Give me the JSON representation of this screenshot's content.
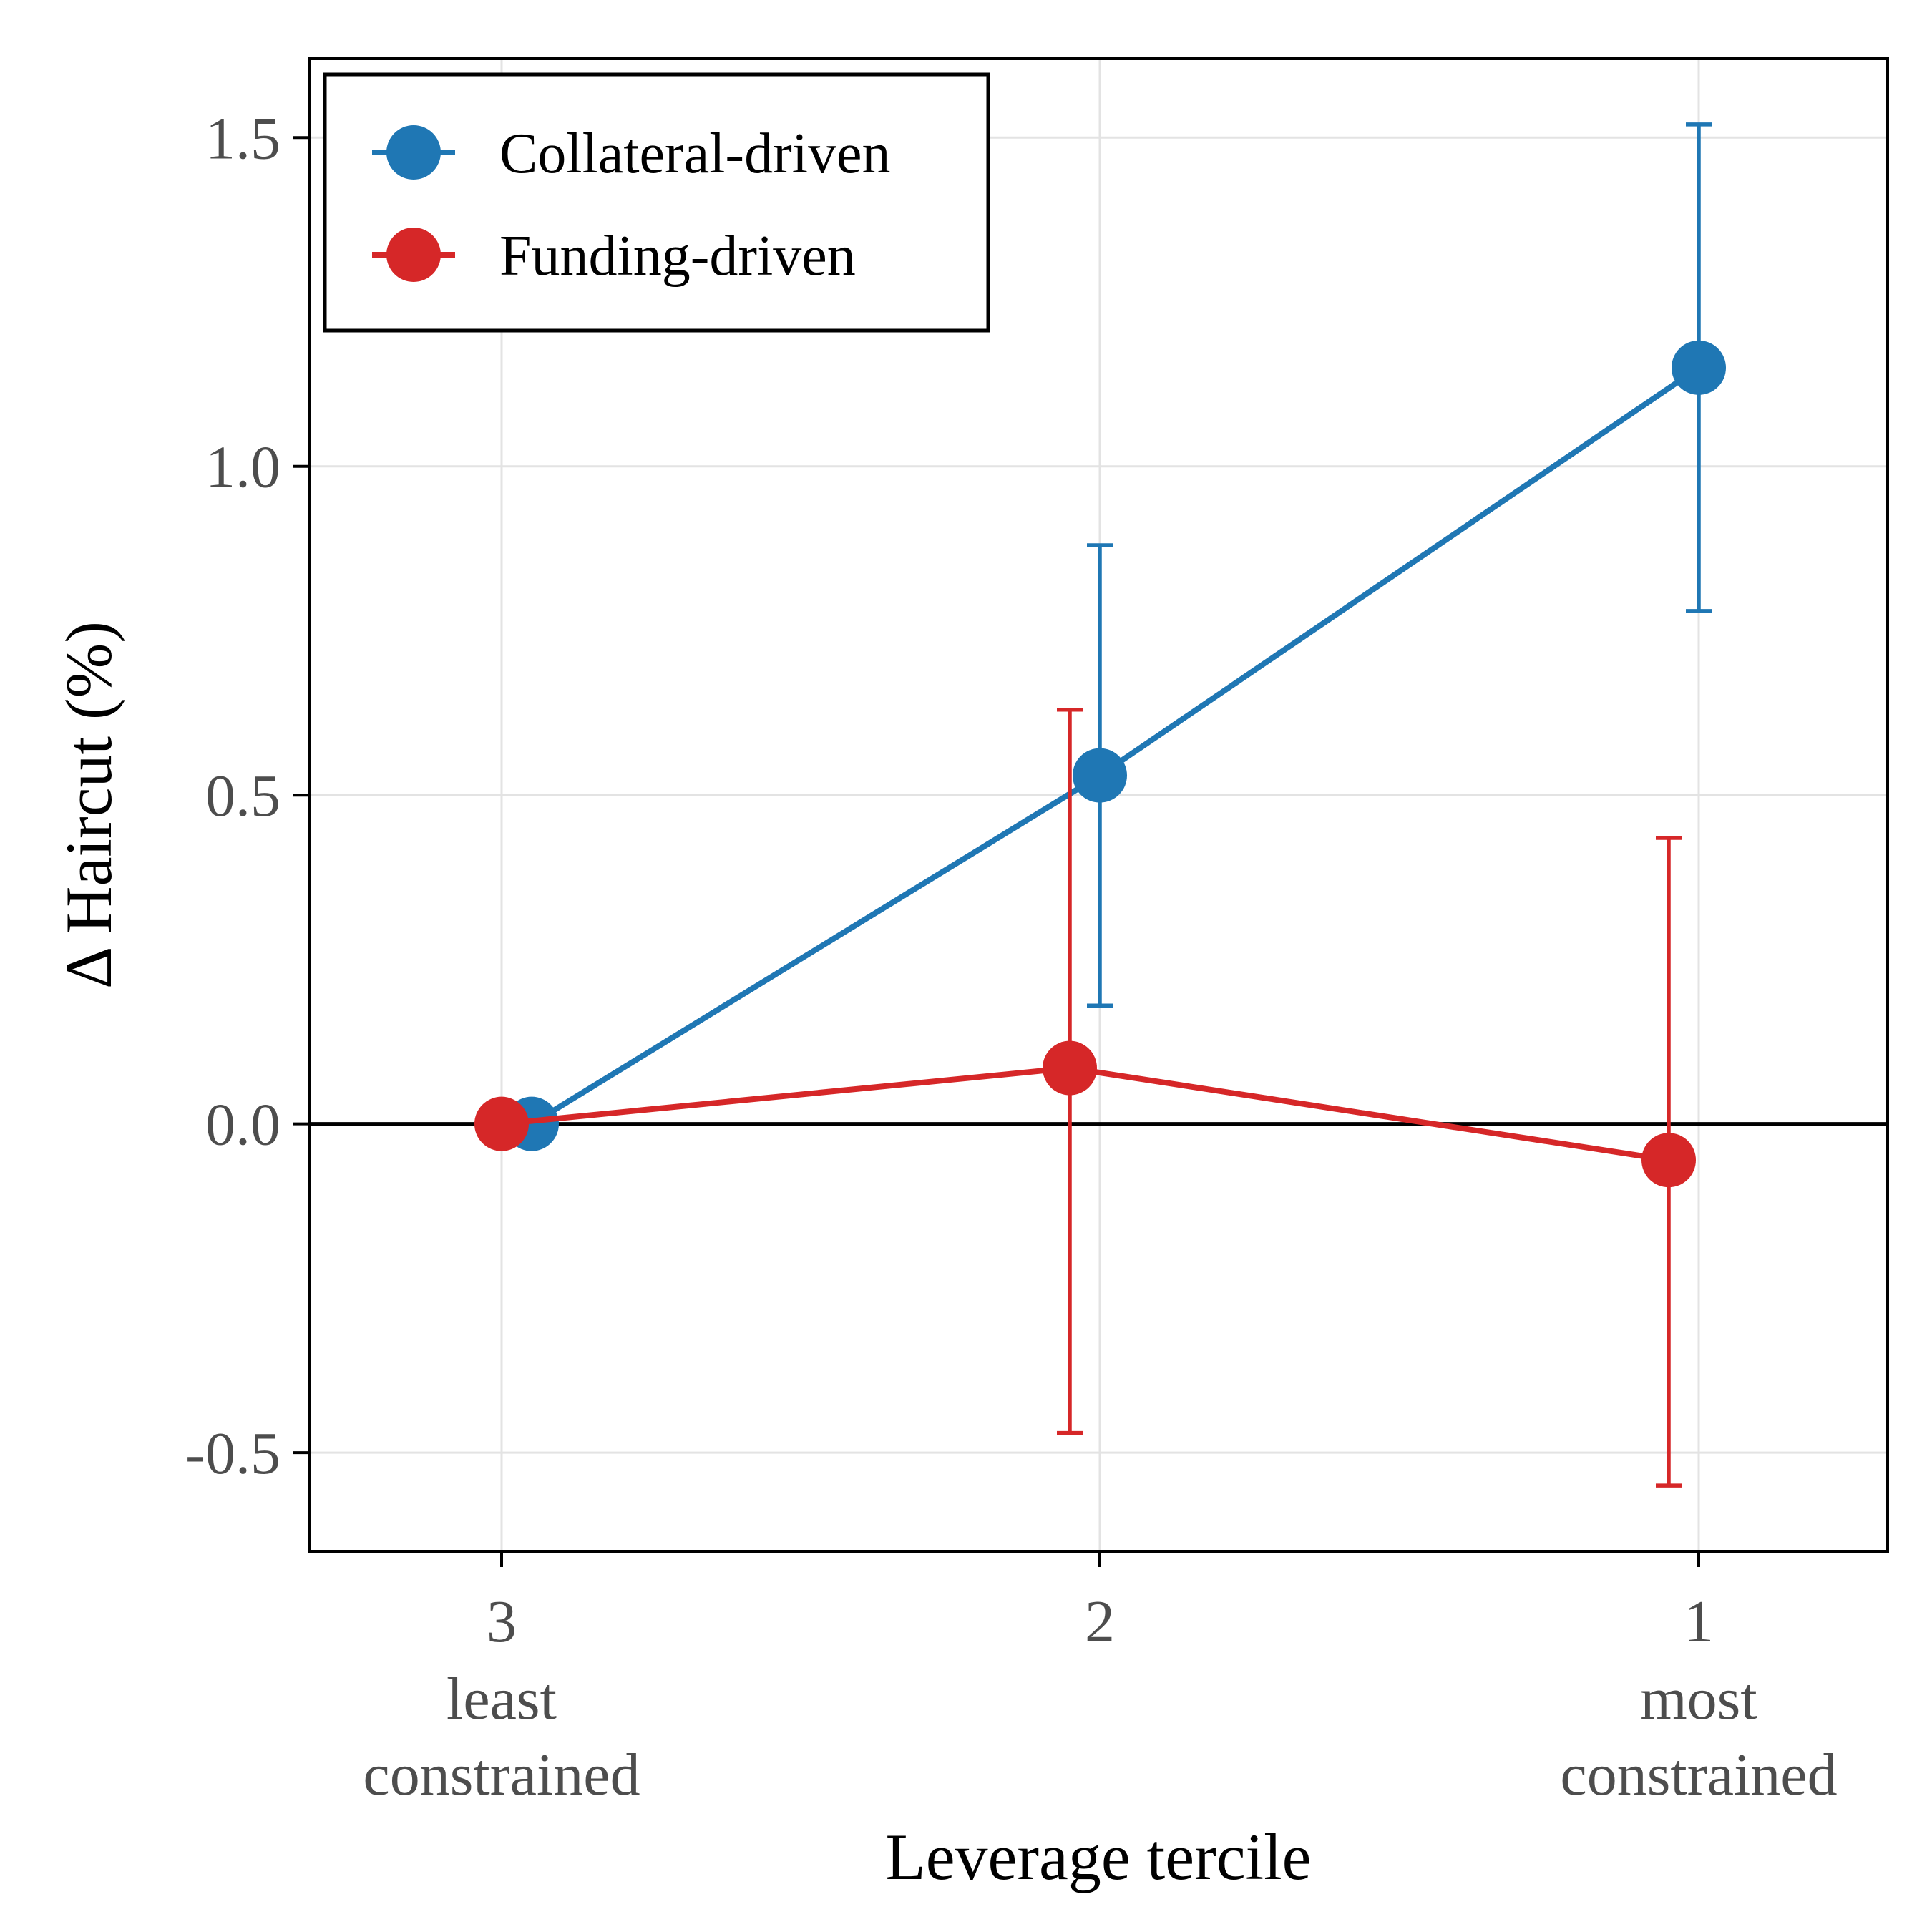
{
  "chart_data": {
    "type": "line",
    "title": "",
    "xlabel": "Leverage tercile",
    "ylabel": "Δ Haircut (%)",
    "ylim": [
      -0.65,
      1.62
    ],
    "grid": true,
    "legend_position": "top-left",
    "categories": [
      {
        "tick": "3",
        "sub": [
          "least",
          "constrained"
        ]
      },
      {
        "tick": "2",
        "sub": []
      },
      {
        "tick": "1",
        "sub": [
          "most",
          "constrained"
        ]
      }
    ],
    "y_ticks": [
      {
        "value": -0.5,
        "label": "-0.5"
      },
      {
        "value": 0.0,
        "label": "0.0"
      },
      {
        "value": 0.5,
        "label": "0.5"
      },
      {
        "value": 1.0,
        "label": "1.0"
      },
      {
        "value": 1.5,
        "label": "1.5"
      }
    ],
    "reference_line": 0.0,
    "series": [
      {
        "name": "Collateral-driven",
        "color": "#1f77b4",
        "values": [
          0.0,
          0.53,
          1.15
        ],
        "ci_low": [
          null,
          0.18,
          0.78
        ],
        "ci_high": [
          null,
          0.88,
          1.52
        ]
      },
      {
        "name": "Funding-driven",
        "color": "#d62728",
        "values": [
          0.0,
          0.085,
          -0.055
        ],
        "ci_low": [
          null,
          -0.47,
          -0.55
        ],
        "ci_high": [
          null,
          0.63,
          0.435
        ]
      }
    ]
  }
}
